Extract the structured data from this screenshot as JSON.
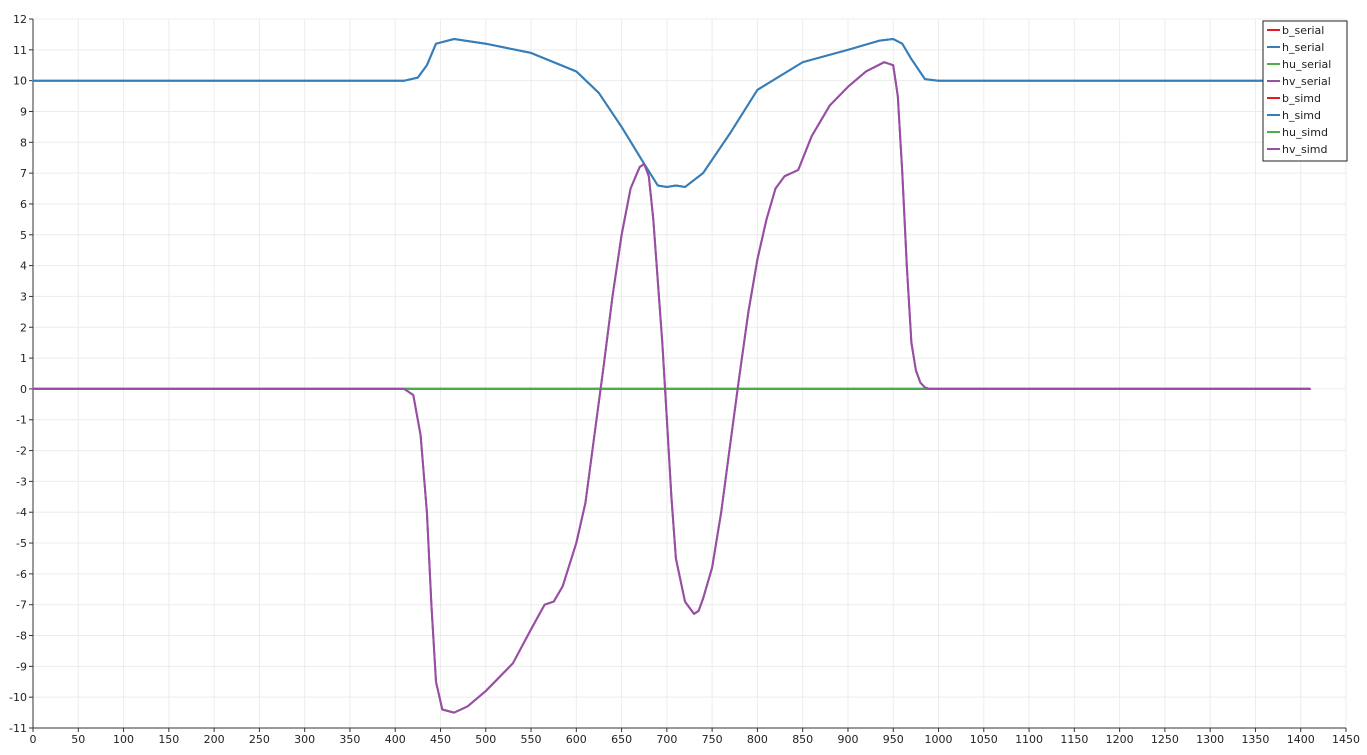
{
  "chart_data": {
    "type": "line",
    "title": "",
    "xlabel": "",
    "ylabel": "",
    "xlim": [
      0,
      1450
    ],
    "ylim": [
      -11,
      12
    ],
    "x_ticks": [
      0,
      50,
      100,
      150,
      200,
      250,
      300,
      350,
      400,
      450,
      500,
      550,
      600,
      650,
      700,
      750,
      800,
      850,
      900,
      950,
      1000,
      1050,
      1100,
      1150,
      1200,
      1250,
      1300,
      1350,
      1400,
      1450
    ],
    "y_ticks": [
      12,
      11,
      10,
      9,
      8,
      7,
      6,
      5,
      4,
      3,
      2,
      1,
      0,
      -1,
      -2,
      -3,
      -4,
      -5,
      -6,
      -7,
      -8,
      -9,
      -10,
      -11
    ],
    "grid": true,
    "legend_position": "top-right",
    "series": [
      {
        "name": "b_serial",
        "color": "#e41a1c",
        "x": [
          0,
          1410
        ],
        "y": [
          0,
          0
        ]
      },
      {
        "name": "h_serial",
        "color": "#377eb8",
        "x": [
          0,
          410,
          425,
          435,
          445,
          465,
          500,
          550,
          600,
          625,
          650,
          675,
          690,
          700,
          710,
          720,
          740,
          770,
          800,
          850,
          900,
          935,
          950,
          960,
          970,
          985,
          1000,
          1410
        ],
        "y": [
          10,
          10,
          10.1,
          10.5,
          11.2,
          11.35,
          11.2,
          10.9,
          10.3,
          9.6,
          8.5,
          7.3,
          6.6,
          6.55,
          6.6,
          6.55,
          7.0,
          8.3,
          9.7,
          10.6,
          11.0,
          11.3,
          11.35,
          11.2,
          10.7,
          10.05,
          10.0,
          10.0
        ]
      },
      {
        "name": "hu_serial",
        "color": "#4daf4a",
        "x": [
          0,
          1410
        ],
        "y": [
          0,
          0
        ]
      },
      {
        "name": "hv_serial",
        "color": "#984ea3",
        "x": [
          0,
          410,
          420,
          428,
          435,
          440,
          445,
          452,
          465,
          480,
          500,
          530,
          550,
          565,
          575,
          585,
          600,
          610,
          620,
          630,
          640,
          650,
          660,
          670,
          675,
          680,
          685,
          690,
          695,
          700,
          705,
          710,
          720,
          730,
          735,
          740,
          750,
          760,
          770,
          780,
          790,
          800,
          810,
          820,
          830,
          845,
          860,
          880,
          900,
          920,
          940,
          950,
          955,
          960,
          965,
          970,
          975,
          980,
          985,
          990,
          1000,
          1410
        ],
        "y": [
          0,
          0,
          -0.2,
          -1.5,
          -4.0,
          -7.0,
          -9.5,
          -10.4,
          -10.5,
          -10.3,
          -9.8,
          -8.9,
          -7.8,
          -7.0,
          -6.9,
          -6.4,
          -5.0,
          -3.7,
          -1.5,
          0.7,
          3.0,
          5.0,
          6.5,
          7.2,
          7.3,
          6.9,
          5.5,
          3.5,
          1.5,
          -1.0,
          -3.5,
          -5.5,
          -6.9,
          -7.3,
          -7.2,
          -6.8,
          -5.8,
          -4.0,
          -1.8,
          0.4,
          2.5,
          4.2,
          5.5,
          6.5,
          6.9,
          7.1,
          8.2,
          9.2,
          9.8,
          10.3,
          10.6,
          10.5,
          9.5,
          7.0,
          4.0,
          1.5,
          0.6,
          0.2,
          0.05,
          0.0,
          0.0,
          0.0
        ]
      },
      {
        "name": "b_simd",
        "color": "#e41a1c",
        "x": [
          0,
          1410
        ],
        "y": [
          0,
          0
        ]
      },
      {
        "name": "h_simd",
        "color": "#377eb8",
        "x": [
          0,
          410,
          425,
          435,
          445,
          465,
          500,
          550,
          600,
          625,
          650,
          675,
          690,
          700,
          710,
          720,
          740,
          770,
          800,
          850,
          900,
          935,
          950,
          960,
          970,
          985,
          1000,
          1410
        ],
        "y": [
          10,
          10,
          10.1,
          10.5,
          11.2,
          11.35,
          11.2,
          10.9,
          10.3,
          9.6,
          8.5,
          7.3,
          6.6,
          6.55,
          6.6,
          6.55,
          7.0,
          8.3,
          9.7,
          10.6,
          11.0,
          11.3,
          11.35,
          11.2,
          10.7,
          10.05,
          10.0,
          10.0
        ]
      },
      {
        "name": "hu_simd",
        "color": "#4daf4a",
        "x": [
          0,
          1410
        ],
        "y": [
          0,
          0
        ]
      },
      {
        "name": "hv_simd",
        "color": "#984ea3",
        "x": [
          0,
          410,
          420,
          428,
          435,
          440,
          445,
          452,
          465,
          480,
          500,
          530,
          550,
          565,
          575,
          585,
          600,
          610,
          620,
          630,
          640,
          650,
          660,
          670,
          675,
          680,
          685,
          690,
          695,
          700,
          705,
          710,
          720,
          730,
          735,
          740,
          750,
          760,
          770,
          780,
          790,
          800,
          810,
          820,
          830,
          845,
          860,
          880,
          900,
          920,
          940,
          950,
          955,
          960,
          965,
          970,
          975,
          980,
          985,
          990,
          1000,
          1410
        ],
        "y": [
          0,
          0,
          -0.2,
          -1.5,
          -4.0,
          -7.0,
          -9.5,
          -10.4,
          -10.5,
          -10.3,
          -9.8,
          -8.9,
          -7.8,
          -7.0,
          -6.9,
          -6.4,
          -5.0,
          -3.7,
          -1.5,
          0.7,
          3.0,
          5.0,
          6.5,
          7.2,
          7.3,
          6.9,
          5.5,
          3.5,
          1.5,
          -1.0,
          -3.5,
          -5.5,
          -6.9,
          -7.3,
          -7.2,
          -6.8,
          -5.8,
          -4.0,
          -1.8,
          0.4,
          2.5,
          4.2,
          5.5,
          6.5,
          6.9,
          7.1,
          8.2,
          9.2,
          9.8,
          10.3,
          10.6,
          10.5,
          9.5,
          7.0,
          4.0,
          1.5,
          0.6,
          0.2,
          0.05,
          0.0,
          0.0,
          0.0
        ]
      }
    ]
  }
}
